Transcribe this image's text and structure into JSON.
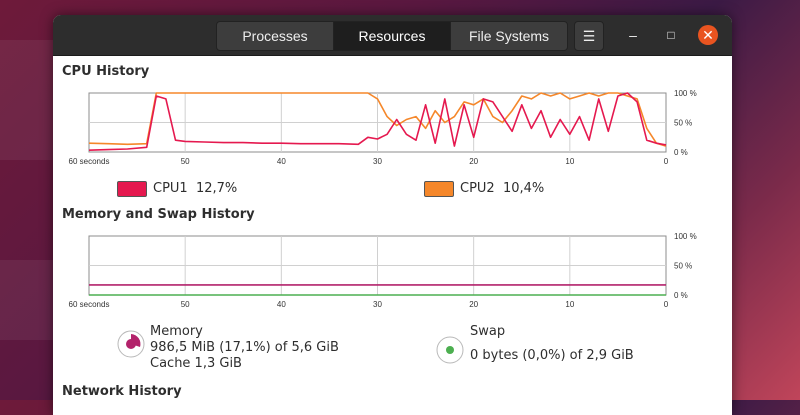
{
  "tabs": [
    {
      "label": "Processes",
      "active": false
    },
    {
      "label": "Resources",
      "active": true
    },
    {
      "label": "File Systems",
      "active": false
    }
  ],
  "window_controls": {
    "menu": "☰",
    "minimize": "–",
    "maximize": "□",
    "close": "✕"
  },
  "cpu": {
    "title": "CPU History",
    "cpu1_label": "CPU1",
    "cpu1_value": "12,7%",
    "cpu1_color": "#e5194f",
    "cpu2_label": "CPU2",
    "cpu2_value": "10,4%",
    "cpu2_color": "#f5872a"
  },
  "memory": {
    "title": "Memory and Swap History",
    "memory_label": "Memory",
    "memory_detail": "986,5 MiB (17,1%) of 5,6 GiB",
    "memory_cache": "Cache 1,3 GiB",
    "memory_color": "#b3226b",
    "swap_label": "Swap",
    "swap_detail": "0 bytes (0,0%) of 2,9 GiB",
    "swap_color": "#4caf50"
  },
  "network": {
    "title": "Network History"
  },
  "axis": {
    "x_ticks": [
      "60 seconds",
      "50",
      "40",
      "30",
      "20",
      "10",
      "0"
    ],
    "y_ticks": [
      "100 %",
      "50 %",
      "0 %"
    ]
  },
  "chart_data": [
    {
      "type": "line",
      "title": "CPU History",
      "x": [
        60,
        58,
        56,
        54,
        53,
        52,
        51,
        50,
        48,
        46,
        44,
        42,
        40,
        38,
        36,
        34,
        32,
        31,
        30,
        29,
        28,
        27,
        26,
        25,
        24,
        23,
        22,
        21,
        20,
        19,
        18,
        17,
        16,
        15,
        14,
        13,
        12,
        11,
        10,
        9,
        8,
        7,
        6,
        5,
        4,
        3,
        2,
        1,
        0
      ],
      "series": [
        {
          "name": "CPU1",
          "color": "#e5194f",
          "values": [
            3,
            4,
            5,
            8,
            95,
            90,
            20,
            18,
            17,
            16,
            16,
            15,
            15,
            14,
            14,
            14,
            13,
            25,
            22,
            30,
            55,
            30,
            20,
            80,
            15,
            90,
            10,
            80,
            25,
            90,
            85,
            60,
            35,
            80,
            40,
            70,
            25,
            55,
            30,
            60,
            20,
            90,
            35,
            95,
            100,
            85,
            20,
            15,
            12
          ]
        },
        {
          "name": "CPU2",
          "color": "#f5872a",
          "values": [
            15,
            14,
            13,
            14,
            100,
            100,
            100,
            100,
            100,
            100,
            100,
            100,
            100,
            100,
            100,
            100,
            100,
            100,
            90,
            60,
            45,
            55,
            60,
            40,
            70,
            50,
            60,
            85,
            80,
            90,
            60,
            50,
            70,
            95,
            90,
            100,
            95,
            100,
            90,
            95,
            100,
            95,
            100,
            100,
            95,
            90,
            40,
            15,
            10
          ]
        }
      ],
      "ylim": [
        0,
        100
      ],
      "xlim": [
        60,
        0
      ]
    },
    {
      "type": "line",
      "title": "Memory and Swap History",
      "x": [
        60,
        0
      ],
      "series": [
        {
          "name": "Memory",
          "color": "#b3226b",
          "values": [
            17.1,
            17.1
          ]
        },
        {
          "name": "Swap",
          "color": "#4caf50",
          "values": [
            0,
            0
          ]
        }
      ],
      "ylim": [
        0,
        100
      ],
      "xlim": [
        60,
        0
      ]
    }
  ]
}
